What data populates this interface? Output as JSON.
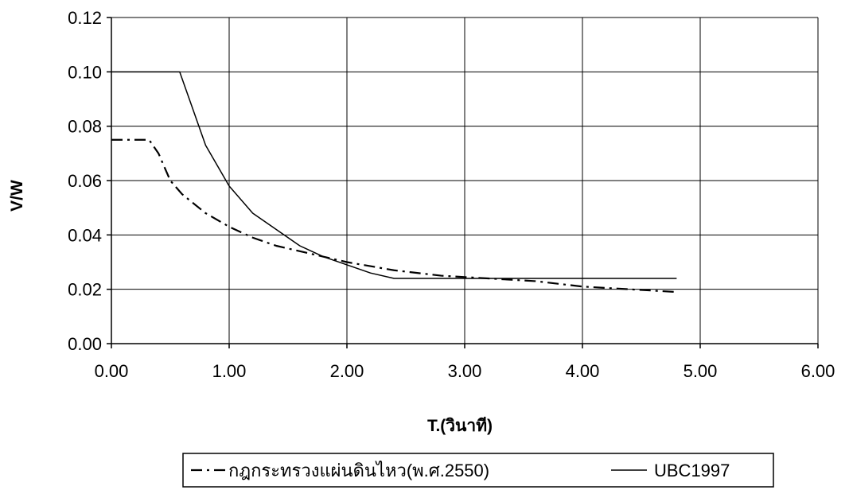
{
  "chart_data": {
    "type": "line",
    "title": "",
    "xlabel": "T.(วินาที)",
    "ylabel": "V/W",
    "xlim": [
      0,
      6
    ],
    "ylim": [
      0,
      0.12
    ],
    "x_ticks": [
      "0.00",
      "1.00",
      "2.00",
      "3.00",
      "4.00",
      "5.00",
      "6.00"
    ],
    "y_ticks": [
      "0.00",
      "0.02",
      "0.04",
      "0.06",
      "0.08",
      "0.10",
      "0.12"
    ],
    "grid": true,
    "legend_position": "bottom",
    "series": [
      {
        "name": "กฎกระทรวงแผ่นดินไหว(พ.ศ.2550)",
        "style": "dash-dot",
        "color": "#000000",
        "points": [
          [
            0.0,
            0.075
          ],
          [
            0.32,
            0.075
          ],
          [
            0.4,
            0.07
          ],
          [
            0.5,
            0.06
          ],
          [
            0.6,
            0.055
          ],
          [
            0.8,
            0.048
          ],
          [
            1.0,
            0.043
          ],
          [
            1.2,
            0.039
          ],
          [
            1.4,
            0.036
          ],
          [
            1.6,
            0.034
          ],
          [
            1.8,
            0.032
          ],
          [
            2.0,
            0.03
          ],
          [
            2.4,
            0.027
          ],
          [
            2.8,
            0.025
          ],
          [
            3.2,
            0.024
          ],
          [
            3.6,
            0.023
          ],
          [
            4.0,
            0.021
          ],
          [
            4.4,
            0.02
          ],
          [
            4.8,
            0.019
          ]
        ]
      },
      {
        "name": "UBC1997",
        "style": "solid",
        "color": "#000000",
        "points": [
          [
            0.0,
            0.1
          ],
          [
            0.58,
            0.1
          ],
          [
            0.8,
            0.073
          ],
          [
            1.0,
            0.058
          ],
          [
            1.2,
            0.048
          ],
          [
            1.4,
            0.042
          ],
          [
            1.6,
            0.036
          ],
          [
            1.8,
            0.032
          ],
          [
            2.0,
            0.029
          ],
          [
            2.2,
            0.026
          ],
          [
            2.4,
            0.024
          ],
          [
            3.0,
            0.024
          ],
          [
            4.0,
            0.024
          ],
          [
            4.8,
            0.024
          ]
        ]
      }
    ]
  }
}
